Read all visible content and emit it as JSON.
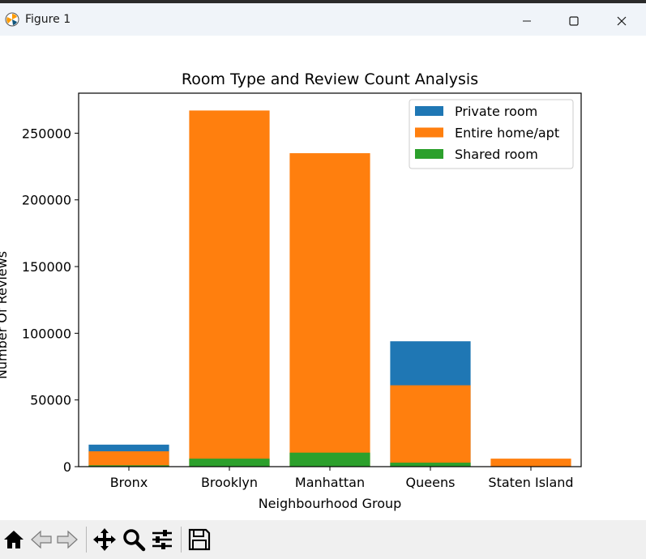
{
  "window": {
    "title": "Figure 1"
  },
  "toolbar": {
    "items": [
      "home-icon",
      "back-arrow-icon",
      "forward-arrow-icon",
      "pan-move-icon",
      "zoom-magnifier-icon",
      "configure-subplots-icon",
      "save-floppy-icon"
    ]
  },
  "colors": {
    "private_room": "#1f77b4",
    "entire_home": "#ff7f0e",
    "shared_room": "#2ca02c"
  },
  "chart_data": {
    "type": "bar",
    "stacked": true,
    "title": "Room Type and Review Count Analysis",
    "xlabel": "Neighbourhood Group",
    "ylabel": "Number Of Reviews",
    "categories": [
      "Bronx",
      "Brooklyn",
      "Manhattan",
      "Queens",
      "Staten Island"
    ],
    "series": [
      {
        "name": "Private room",
        "values": [
          16500,
          0,
          0,
          94000,
          0
        ],
        "color": "#1f77b4"
      },
      {
        "name": "Entire home/apt",
        "values": [
          11500,
          267000,
          235000,
          61000,
          6000
        ],
        "color": "#ff7f0e"
      },
      {
        "name": "Shared room",
        "values": [
          1000,
          6000,
          10500,
          3000,
          0
        ],
        "color": "#2ca02c"
      }
    ],
    "yticks": [
      0,
      50000,
      100000,
      150000,
      200000,
      250000
    ],
    "ylim": [
      0,
      280000
    ],
    "legend": "top-right",
    "grid": false
  }
}
